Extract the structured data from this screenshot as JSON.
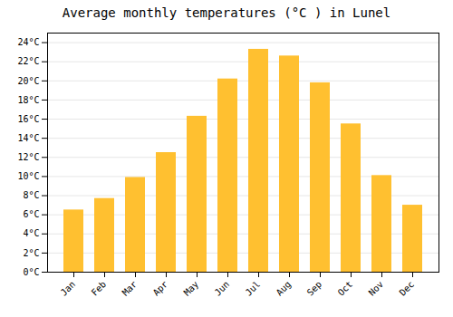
{
  "chart_data": {
    "type": "bar",
    "title": "Average monthly temperatures (°C ) in Lunel",
    "categories": [
      "Jan",
      "Feb",
      "Mar",
      "Apr",
      "May",
      "Jun",
      "Jul",
      "Aug",
      "Sep",
      "Oct",
      "Nov",
      "Dec"
    ],
    "values": [
      6.5,
      7.7,
      9.9,
      12.5,
      16.3,
      20.2,
      23.3,
      22.6,
      19.8,
      15.5,
      10.1,
      7.0
    ],
    "color": "#FFC030",
    "ylim": [
      0,
      25
    ],
    "yticks": [
      {
        "value": 0,
        "label": "0°C"
      },
      {
        "value": 2,
        "label": "2°C"
      },
      {
        "value": 4,
        "label": "4°C"
      },
      {
        "value": 6,
        "label": "6°C"
      },
      {
        "value": 8,
        "label": "8°C"
      },
      {
        "value": 10,
        "label": "10°C"
      },
      {
        "value": 12,
        "label": "12°C"
      },
      {
        "value": 14,
        "label": "14°C"
      },
      {
        "value": 16,
        "label": "16°C"
      },
      {
        "value": 18,
        "label": "18°C"
      },
      {
        "value": 20,
        "label": "20°C"
      },
      {
        "value": 22,
        "label": "22°C"
      },
      {
        "value": 24,
        "label": "24°C"
      }
    ],
    "grid": true
  }
}
